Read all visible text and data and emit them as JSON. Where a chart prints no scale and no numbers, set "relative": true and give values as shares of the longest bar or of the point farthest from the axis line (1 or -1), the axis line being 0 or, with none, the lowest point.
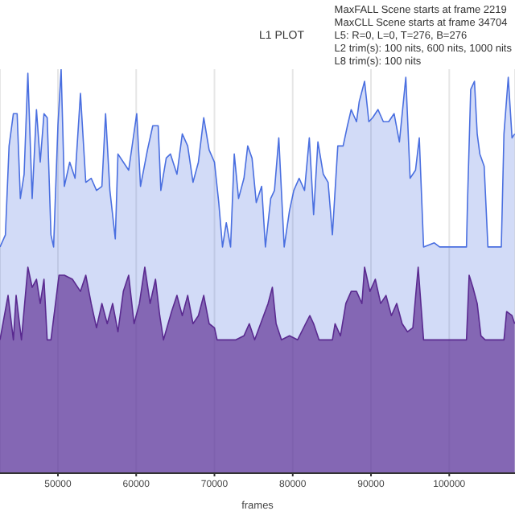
{
  "chart_data": {
    "type": "area",
    "title": "L1 PLOT",
    "xlabel": "frames",
    "relative": true,
    "grid": "x",
    "xlim": [
      42600,
      108400
    ],
    "xticks": [
      50000,
      60000,
      70000,
      80000,
      90000,
      100000
    ],
    "annotations": [
      "MaxFALL Scene starts at frame 2219",
      "MaxCLL Scene starts at frame 34704",
      "L5: R=0, L=0, T=276, B=276",
      "L2 trim(s): 100 nits, 600 nits, 1000 nits",
      "L8 trim(s): 100 nits"
    ],
    "series": [
      {
        "color": "#4a6fe0",
        "x": [
          42600,
          43290,
          43760,
          44310,
          44790,
          45200,
          45680,
          46160,
          46710,
          47260,
          47740,
          48220,
          48630,
          49110,
          49450,
          50000,
          50410,
          50820,
          51510,
          52190,
          52880,
          53560,
          54250,
          54930,
          55620,
          56090,
          56640,
          57330,
          57670,
          58360,
          59040,
          60070,
          60550,
          61440,
          62120,
          62810,
          63150,
          63840,
          64380,
          65210,
          65890,
          66580,
          67260,
          67950,
          68630,
          69320,
          70000,
          70550,
          71030,
          71510,
          72060,
          72530,
          73080,
          73770,
          74250,
          74800,
          75340,
          76030,
          76510,
          77190,
          77670,
          78220,
          78910,
          79590,
          80140,
          80820,
          81510,
          82120,
          82670,
          83220,
          83910,
          84520,
          85070,
          85760,
          86440,
          86990,
          87470,
          88150,
          88500,
          89180,
          89730,
          90210,
          90890,
          91580,
          92260,
          92950,
          93630,
          94450,
          95000,
          95690,
          96170,
          96720,
          98090,
          98770,
          102200,
          102330,
          102740,
          103220,
          103570,
          103910,
          104460,
          104940,
          106650,
          106990,
          107540,
          108020,
          108360
        ],
        "values": [
          0.56,
          0.59,
          0.81,
          0.89,
          0.89,
          0.68,
          0.74,
          0.99,
          0.68,
          0.9,
          0.77,
          0.89,
          0.88,
          0.59,
          0.56,
          0.86,
          1.0,
          0.71,
          0.77,
          0.73,
          0.94,
          0.72,
          0.73,
          0.7,
          0.71,
          0.89,
          0.7,
          0.58,
          0.79,
          0.77,
          0.75,
          0.89,
          0.71,
          0.8,
          0.86,
          0.86,
          0.7,
          0.78,
          0.79,
          0.74,
          0.84,
          0.81,
          0.72,
          0.77,
          0.88,
          0.8,
          0.77,
          0.67,
          0.56,
          0.62,
          0.56,
          0.79,
          0.68,
          0.73,
          0.81,
          0.78,
          0.67,
          0.71,
          0.56,
          0.68,
          0.7,
          0.83,
          0.56,
          0.65,
          0.7,
          0.73,
          0.7,
          0.83,
          0.64,
          0.82,
          0.74,
          0.72,
          0.59,
          0.81,
          0.81,
          0.86,
          0.9,
          0.87,
          0.92,
          0.97,
          0.87,
          0.88,
          0.9,
          0.87,
          0.87,
          0.89,
          0.82,
          0.98,
          0.73,
          0.75,
          0.83,
          0.56,
          0.57,
          0.56,
          0.56,
          0.67,
          0.95,
          0.97,
          0.84,
          0.79,
          0.76,
          0.56,
          0.56,
          0.84,
          0.98,
          0.83,
          0.84
        ]
      },
      {
        "color": "#5a2a90",
        "x": [
          42600,
          43630,
          44310,
          44660,
          45340,
          46160,
          46710,
          47260,
          47740,
          48220,
          48630,
          49110,
          50140,
          50820,
          51850,
          52880,
          53560,
          54250,
          54930,
          55620,
          56300,
          56990,
          57670,
          58360,
          59040,
          59730,
          60410,
          61100,
          61780,
          62470,
          63010,
          63490,
          64520,
          65210,
          65890,
          66580,
          67260,
          67950,
          68630,
          69320,
          70000,
          70340,
          71370,
          72740,
          73770,
          74450,
          75140,
          76850,
          77400,
          77880,
          78560,
          79590,
          80620,
          81650,
          82190,
          82670,
          83360,
          85070,
          85410,
          86100,
          86790,
          87470,
          88150,
          88840,
          89180,
          89870,
          90550,
          91240,
          91920,
          92610,
          93290,
          93980,
          94660,
          95350,
          96030,
          96720,
          102200,
          102540,
          103020,
          103570,
          104050,
          104600,
          106990,
          107330,
          108020,
          108360
        ],
        "values": [
          0.33,
          0.44,
          0.33,
          0.44,
          0.33,
          0.51,
          0.46,
          0.48,
          0.42,
          0.48,
          0.33,
          0.33,
          0.49,
          0.49,
          0.48,
          0.45,
          0.49,
          0.42,
          0.36,
          0.42,
          0.37,
          0.42,
          0.35,
          0.45,
          0.49,
          0.37,
          0.42,
          0.51,
          0.42,
          0.48,
          0.39,
          0.33,
          0.4,
          0.44,
          0.39,
          0.44,
          0.37,
          0.39,
          0.44,
          0.37,
          0.36,
          0.33,
          0.33,
          0.33,
          0.34,
          0.37,
          0.33,
          0.42,
          0.46,
          0.37,
          0.33,
          0.34,
          0.33,
          0.37,
          0.39,
          0.37,
          0.33,
          0.33,
          0.37,
          0.34,
          0.42,
          0.45,
          0.45,
          0.42,
          0.51,
          0.45,
          0.48,
          0.42,
          0.44,
          0.39,
          0.42,
          0.37,
          0.35,
          0.36,
          0.51,
          0.33,
          0.33,
          0.49,
          0.46,
          0.42,
          0.34,
          0.33,
          0.33,
          0.4,
          0.39,
          0.37
        ]
      }
    ]
  }
}
